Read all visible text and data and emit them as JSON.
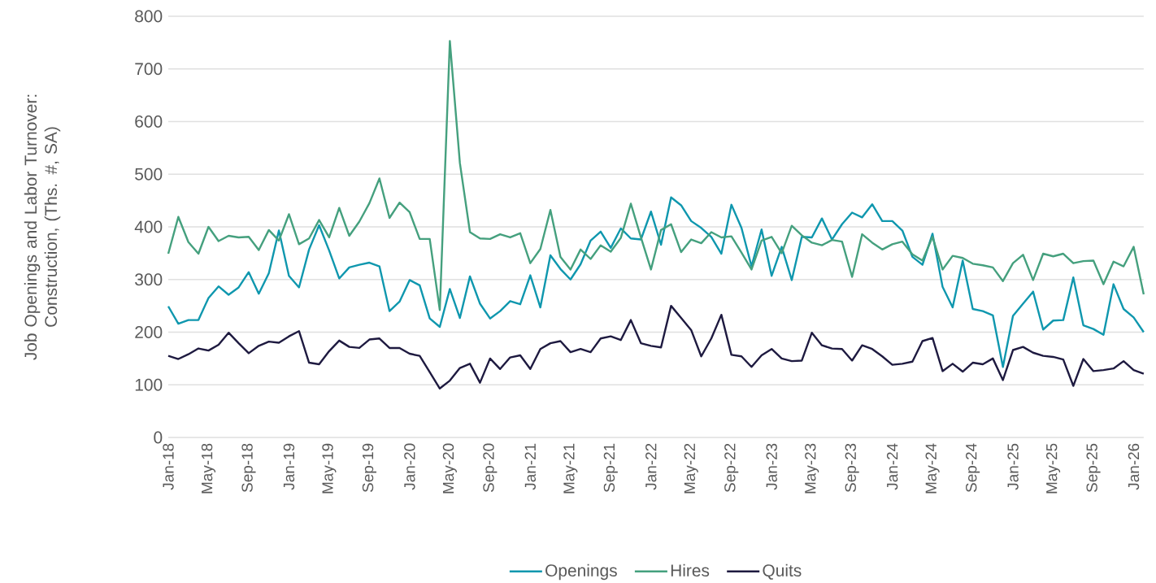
{
  "chart_data": {
    "type": "line",
    "ylabel": "Job Openings and Labor Turnover: Construction, (Ths. #, SA)",
    "x": [
      "2018-01",
      "2018-02",
      "2018-03",
      "2018-04",
      "2018-05",
      "2018-06",
      "2018-07",
      "2018-08",
      "2018-09",
      "2018-10",
      "2018-11",
      "2018-12",
      "2019-01",
      "2019-02",
      "2019-03",
      "2019-04",
      "2019-05",
      "2019-06",
      "2019-07",
      "2019-08",
      "2019-09",
      "2019-10",
      "2019-11",
      "2019-12",
      "2020-01",
      "2020-02",
      "2020-03",
      "2020-04",
      "2020-05",
      "2020-06",
      "2020-07",
      "2020-08",
      "2020-09",
      "2020-10",
      "2020-11",
      "2020-12",
      "2021-01",
      "2021-02",
      "2021-03",
      "2021-04",
      "2021-05",
      "2021-06",
      "2021-07",
      "2021-08",
      "2021-09",
      "2021-10",
      "2021-11",
      "2021-12",
      "2022-01",
      "2022-02",
      "2022-03",
      "2022-04",
      "2022-05",
      "2022-06",
      "2022-07",
      "2022-08",
      "2022-09",
      "2022-10",
      "2022-11",
      "2022-12",
      "2023-01",
      "2023-02",
      "2023-03",
      "2023-04",
      "2023-05",
      "2023-06",
      "2023-07",
      "2023-08",
      "2023-09",
      "2023-10",
      "2023-11",
      "2023-12",
      "2024-01",
      "2024-02",
      "2024-03",
      "2024-04",
      "2024-05",
      "2024-06",
      "2024-07",
      "2024-08",
      "2024-09",
      "2024-10",
      "2024-11",
      "2024-12",
      "2025-01",
      "2025-02",
      "2025-03",
      "2025-04",
      "2025-05",
      "2025-06",
      "2025-07",
      "2025-08",
      "2025-09",
      "2025-10",
      "2025-11",
      "2025-12",
      "2026-01",
      "2026-02"
    ],
    "series": [
      {
        "name": "Openings",
        "color": "#0f97ae",
        "values": [
          249,
          216,
          223,
          223,
          265,
          287,
          271,
          285,
          314,
          273,
          312,
          393,
          307,
          285,
          357,
          403,
          355,
          302,
          323,
          328,
          332,
          325,
          240,
          258,
          299,
          289,
          226,
          210,
          282,
          227,
          306,
          254,
          226,
          240,
          259,
          253,
          308,
          247,
          346,
          320,
          300,
          329,
          374,
          391,
          360,
          397,
          378,
          376,
          429,
          366,
          456,
          441,
          411,
          398,
          381,
          349,
          442,
          398,
          325,
          395,
          307,
          362,
          299,
          381,
          380,
          416,
          376,
          405,
          427,
          418,
          443,
          411,
          411,
          393,
          343,
          328,
          387,
          286,
          247,
          336,
          244,
          240,
          232,
          134,
          231,
          254,
          277,
          205,
          222,
          223,
          304,
          213,
          206,
          195,
          291,
          244,
          228,
          200
        ]
      },
      {
        "name": "Hires",
        "color": "#45a07e",
        "values": [
          349,
          419,
          371,
          349,
          400,
          373,
          383,
          380,
          381,
          356,
          394,
          374,
          424,
          367,
          378,
          413,
          380,
          436,
          383,
          410,
          445,
          492,
          417,
          446,
          428,
          377,
          377,
          242,
          753,
          521,
          390,
          378,
          377,
          386,
          380,
          388,
          331,
          358,
          432,
          343,
          319,
          357,
          339,
          365,
          353,
          379,
          444,
          380,
          319,
          394,
          405,
          352,
          376,
          369,
          390,
          380,
          382,
          351,
          319,
          374,
          381,
          350,
          402,
          384,
          370,
          365,
          375,
          372,
          305,
          386,
          370,
          357,
          367,
          372,
          348,
          336,
          381,
          319,
          345,
          341,
          330,
          327,
          323,
          297,
          331,
          347,
          299,
          349,
          344,
          349,
          331,
          335,
          336,
          291,
          334,
          325,
          362,
          272
        ]
      },
      {
        "name": "Quits",
        "color": "#1e1a40",
        "values": [
          155,
          149,
          158,
          169,
          165,
          176,
          199,
          179,
          160,
          174,
          182,
          180,
          192,
          202,
          142,
          139,
          164,
          184,
          172,
          170,
          186,
          188,
          170,
          170,
          159,
          155,
          124,
          93,
          108,
          132,
          140,
          104,
          150,
          130,
          152,
          156,
          130,
          168,
          179,
          183,
          162,
          168,
          162,
          188,
          192,
          185,
          223,
          179,
          174,
          171,
          250,
          227,
          204,
          154,
          188,
          233,
          157,
          154,
          134,
          156,
          168,
          150,
          145,
          146,
          199,
          175,
          169,
          168,
          146,
          175,
          168,
          154,
          138,
          140,
          144,
          183,
          189,
          126,
          140,
          125,
          142,
          139,
          150,
          109,
          166,
          172,
          161,
          155,
          153,
          148,
          98,
          149,
          126,
          128,
          131,
          145,
          128,
          121
        ]
      }
    ],
    "xlim": [
      "2018-01",
      "2026-02"
    ],
    "xticks": [
      {
        "value": "2018-01",
        "label": "Jan-18"
      },
      {
        "value": "2018-05",
        "label": "May-18"
      },
      {
        "value": "2018-09",
        "label": "Sep-18"
      },
      {
        "value": "2019-01",
        "label": "Jan-19"
      },
      {
        "value": "2019-05",
        "label": "May-19"
      },
      {
        "value": "2019-09",
        "label": "Sep-19"
      },
      {
        "value": "2020-01",
        "label": "Jan-20"
      },
      {
        "value": "2020-05",
        "label": "May-20"
      },
      {
        "value": "2020-09",
        "label": "Sep-20"
      },
      {
        "value": "2021-01",
        "label": "Jan-21"
      },
      {
        "value": "2021-05",
        "label": "May-21"
      },
      {
        "value": "2021-09",
        "label": "Sep-21"
      },
      {
        "value": "2022-01",
        "label": "Jan-22"
      },
      {
        "value": "2022-05",
        "label": "May-22"
      },
      {
        "value": "2022-09",
        "label": "Sep-22"
      },
      {
        "value": "2023-01",
        "label": "Jan-23"
      },
      {
        "value": "2023-05",
        "label": "May-23"
      },
      {
        "value": "2023-09",
        "label": "Sep-23"
      },
      {
        "value": "2024-01",
        "label": "Jan-24"
      },
      {
        "value": "2024-05",
        "label": "May-24"
      },
      {
        "value": "2024-09",
        "label": "Sep-24"
      },
      {
        "value": "2025-01",
        "label": "Jan-25"
      },
      {
        "value": "2025-05",
        "label": "May-25"
      },
      {
        "value": "2025-09",
        "label": "Sep-25"
      },
      {
        "value": "2026-01",
        "label": "Jan-26"
      }
    ],
    "ylim": [
      0,
      800
    ],
    "yticks": [
      0,
      100,
      200,
      300,
      400,
      500,
      600,
      700,
      800
    ],
    "grid": "y",
    "legend": "bottom"
  }
}
